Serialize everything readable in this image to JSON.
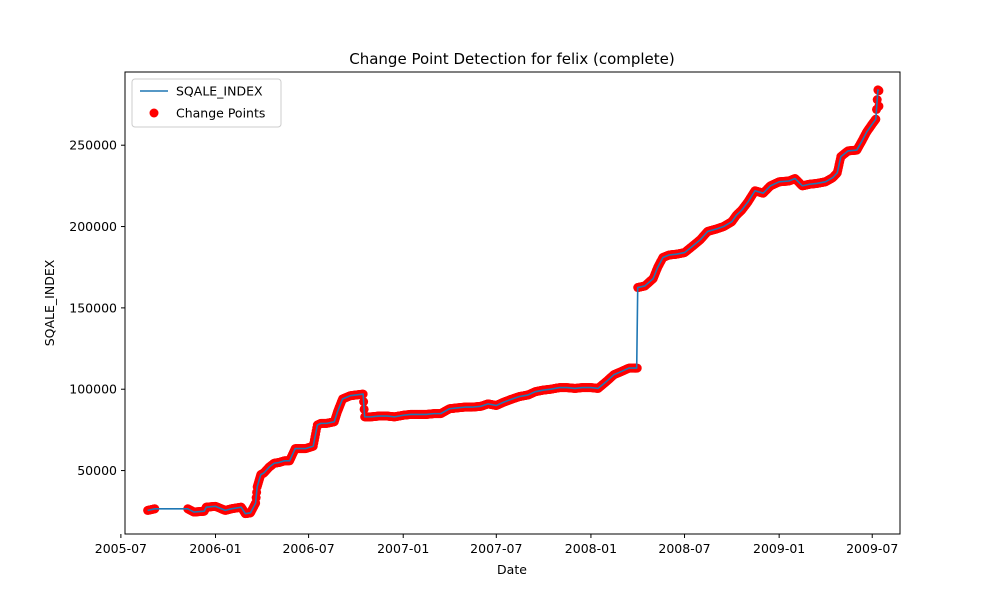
{
  "chart_data": {
    "type": "line",
    "title": "Change Point Detection for felix (complete)",
    "xlabel": "Date",
    "ylabel": "SQALE_INDEX",
    "xlim": [
      "2005-07-09",
      "2009-08-24"
    ],
    "ylim": [
      11000,
      295000
    ],
    "x_ticks": [
      "2005-07",
      "2006-01",
      "2006-07",
      "2007-01",
      "2007-07",
      "2008-01",
      "2008-07",
      "2009-01",
      "2009-07"
    ],
    "y_ticks": [
      50000,
      100000,
      150000,
      200000,
      250000
    ],
    "grid": false,
    "legend": {
      "position": "top-left",
      "entries": [
        "SQALE_INDEX",
        "Change Points"
      ]
    },
    "series": [
      {
        "name": "SQALE_INDEX",
        "kind": "line",
        "color": "#1f77b4",
        "x": [
          "2005-08-22",
          "2005-09-05",
          "2005-11-08",
          "2005-11-20",
          "2005-12-10",
          "2005-12-14",
          "2006-01-01",
          "2006-01-20",
          "2006-02-01",
          "2006-02-20",
          "2006-02-28",
          "2006-03-10",
          "2006-03-20",
          "2006-03-23",
          "2006-03-30",
          "2006-04-05",
          "2006-04-15",
          "2006-04-25",
          "2006-05-05",
          "2006-05-15",
          "2006-05-25",
          "2006-06-05",
          "2006-06-25",
          "2006-07-10",
          "2006-07-18",
          "2006-07-25",
          "2006-08-05",
          "2006-08-20",
          "2006-08-26",
          "2006-09-05",
          "2006-09-20",
          "2006-10-15",
          "2006-10-18",
          "2006-10-30",
          "2006-11-15",
          "2006-12-01",
          "2006-12-15",
          "2007-01-01",
          "2007-01-15",
          "2007-02-01",
          "2007-02-15",
          "2007-03-01",
          "2007-03-15",
          "2007-04-01",
          "2007-04-15",
          "2007-05-01",
          "2007-05-15",
          "2007-06-01",
          "2007-06-15",
          "2007-07-01",
          "2007-07-15",
          "2007-08-01",
          "2007-08-15",
          "2007-09-01",
          "2007-09-15",
          "2007-10-01",
          "2007-10-15",
          "2007-11-01",
          "2007-11-15",
          "2007-12-01",
          "2007-12-15",
          "2008-01-01",
          "2008-01-15",
          "2008-02-01",
          "2008-02-15",
          "2008-03-01",
          "2008-03-15",
          "2008-03-30",
          "2008-04-01",
          "2008-04-15",
          "2008-05-01",
          "2008-05-10",
          "2008-05-20",
          "2008-06-01",
          "2008-06-15",
          "2008-07-01",
          "2008-07-15",
          "2008-08-01",
          "2008-08-15",
          "2008-09-01",
          "2008-09-15",
          "2008-10-01",
          "2008-10-10",
          "2008-10-20",
          "2008-11-01",
          "2008-11-15",
          "2008-12-01",
          "2008-12-15",
          "2009-01-01",
          "2009-01-20",
          "2009-02-01",
          "2009-02-15",
          "2009-03-01",
          "2009-03-15",
          "2009-04-01",
          "2009-04-15",
          "2009-04-24",
          "2009-05-01",
          "2009-05-15",
          "2009-06-01",
          "2009-06-10",
          "2009-06-20",
          "2009-07-01",
          "2009-07-08",
          "2009-07-12",
          "2009-07-14"
        ],
        "y": [
          25500,
          26500,
          26500,
          24500,
          25000,
          27500,
          28000,
          25500,
          26500,
          27500,
          23500,
          24000,
          30000,
          40000,
          47500,
          48500,
          52000,
          54500,
          55000,
          56000,
          56000,
          63500,
          63500,
          65000,
          78000,
          79000,
          79000,
          80000,
          86000,
          94000,
          96000,
          97000,
          83000,
          83000,
          83500,
          83500,
          83000,
          84000,
          84500,
          84500,
          84500,
          85000,
          85000,
          88000,
          88500,
          89000,
          89000,
          89500,
          91000,
          90000,
          92000,
          94000,
          95500,
          96500,
          98500,
          99500,
          100000,
          101000,
          101000,
          100500,
          101000,
          101000,
          100500,
          105000,
          109000,
          111000,
          113000,
          113000,
          162500,
          163500,
          168000,
          175000,
          181000,
          182500,
          183000,
          184000,
          187500,
          192000,
          197000,
          198500,
          200000,
          203000,
          207000,
          210000,
          215000,
          222000,
          220500,
          225000,
          227500,
          228000,
          229500,
          225000,
          226000,
          226500,
          227500,
          230000,
          233000,
          243000,
          246500,
          247000,
          252000,
          258000,
          263000,
          266000,
          284000,
          283500
        ]
      },
      {
        "name": "Change Points",
        "kind": "scatter",
        "color": "#ff0000"
      }
    ]
  }
}
